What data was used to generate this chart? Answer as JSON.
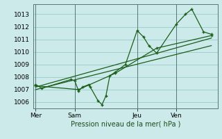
{
  "title": "Pression niveau de la mer( hPa )",
  "bg_color": "#cceaea",
  "grid_color": "#99cccc",
  "line_color": "#1a5e1a",
  "ylim": [
    1005.5,
    1013.8
  ],
  "yticks": [
    1006,
    1007,
    1008,
    1009,
    1010,
    1011,
    1012,
    1013
  ],
  "day_labels": [
    "Mer",
    "Sam",
    "Jeu",
    "Ven"
  ],
  "day_positions": [
    0,
    5,
    13,
    18
  ],
  "xlim": [
    -0.3,
    23.3
  ],
  "series1_x": [
    0,
    0.8,
    4.5,
    5.0,
    5.5,
    6.0,
    6.8,
    7.0,
    8.0,
    8.5,
    9.0,
    9.5,
    10.2,
    11.5,
    13.0,
    13.8,
    14.5,
    15.5,
    18.0,
    19.2,
    20.0,
    21.5,
    22.5
  ],
  "series1_y": [
    1007.4,
    1007.1,
    1007.8,
    1007.7,
    1006.9,
    1007.2,
    1007.4,
    1007.2,
    1006.1,
    1005.8,
    1006.5,
    1008.1,
    1008.4,
    1009.0,
    1011.7,
    1011.2,
    1010.5,
    1009.9,
    1012.2,
    1013.0,
    1013.4,
    1011.6,
    1011.4
  ],
  "series2_x": [
    0,
    5.5,
    10.2,
    15.5,
    22.5
  ],
  "series2_y": [
    1007.3,
    1007.0,
    1008.3,
    1010.3,
    1011.3
  ],
  "trend_x": [
    0,
    22.5
  ],
  "trend_y": [
    1007.0,
    1010.5
  ],
  "trend2_x": [
    0,
    22.5
  ],
  "trend2_y": [
    1007.2,
    1011.1
  ]
}
